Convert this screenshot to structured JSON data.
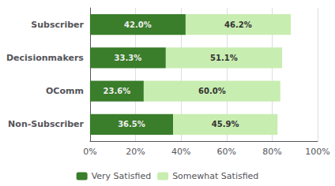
{
  "chart_data": {
    "type": "bar",
    "orientation": "horizontal",
    "stacked": true,
    "categories": [
      "Subscriber",
      "Decisionmakers",
      "OComm",
      "Non-Subscriber"
    ],
    "series": [
      {
        "name": "Very Satisfied",
        "color": "#3a7d2a",
        "values": [
          42.0,
          33.3,
          23.6,
          36.5
        ],
        "value_labels": [
          "42.0%",
          "33.3%",
          "23.6%",
          "36.5%"
        ]
      },
      {
        "name": "Somewhat Satisfied",
        "color": "#c8edb0",
        "values": [
          46.2,
          51.1,
          60.0,
          45.9
        ],
        "value_labels": [
          "46.2%",
          "51.1%",
          "60.0%",
          "45.9%"
        ]
      }
    ],
    "xlim": [
      0,
      100
    ],
    "xticks": [
      {
        "value": 0,
        "label": "0%"
      },
      {
        "value": 20,
        "label": "20%"
      },
      {
        "value": 40,
        "label": "40%"
      },
      {
        "value": 60,
        "label": "60%"
      },
      {
        "value": 80,
        "label": "80%"
      },
      {
        "value": 100,
        "label": "100%"
      }
    ],
    "grid": true,
    "legend": "bottom",
    "data_labels": true
  }
}
